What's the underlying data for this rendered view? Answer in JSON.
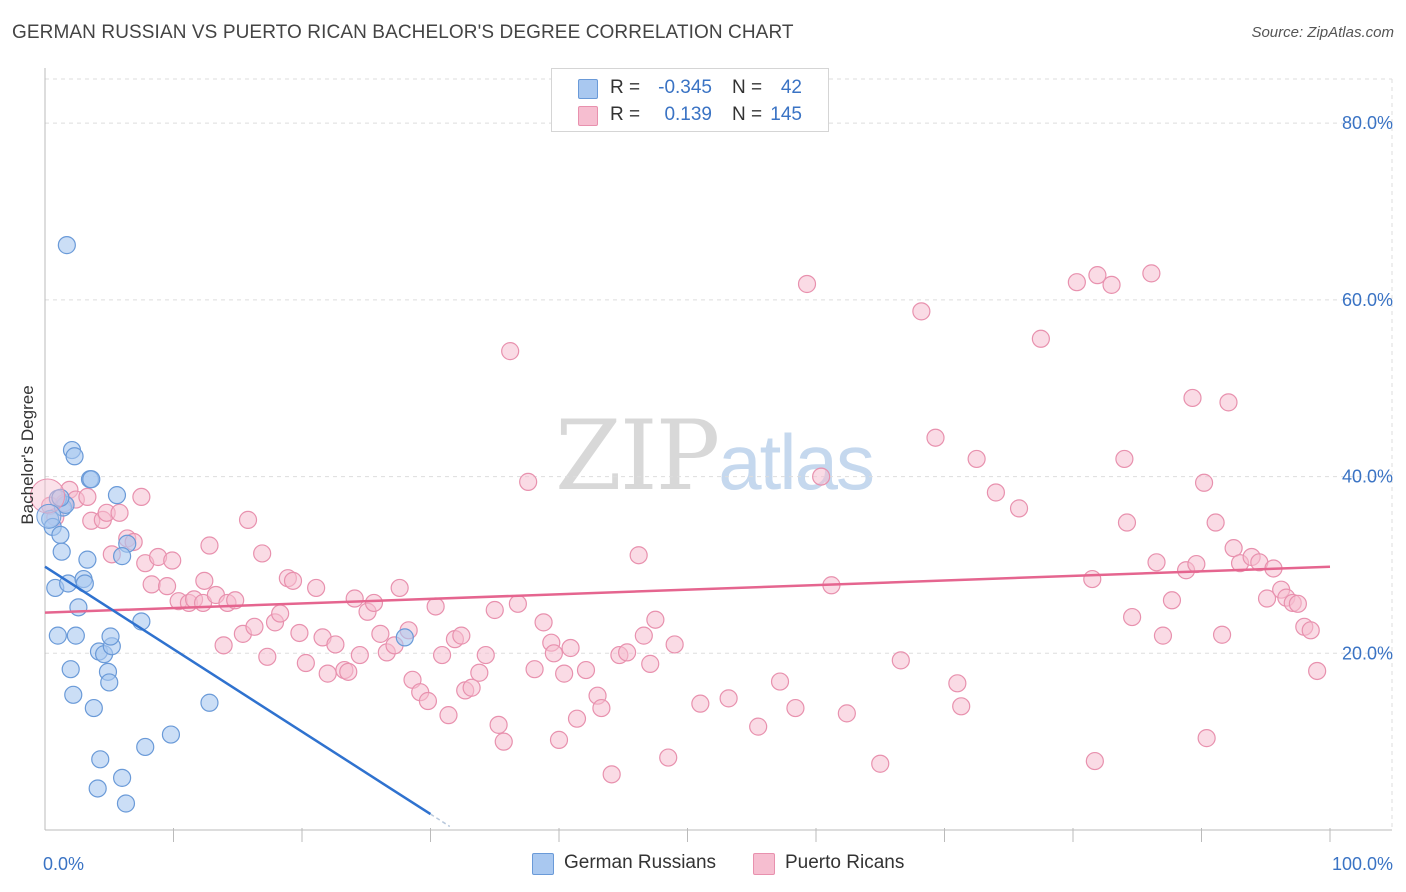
{
  "title": "GERMAN RUSSIAN VS PUERTO RICAN BACHELOR'S DEGREE CORRELATION CHART",
  "source": "Source: ZipAtlas.com",
  "watermark": {
    "zip": "ZIP",
    "atlas": "atlas"
  },
  "colors": {
    "blue_fill": "#a9c8f0",
    "blue_stroke": "#6a9ad8",
    "blue_line": "#2f72cf",
    "pink_fill": "#f6bed0",
    "pink_stroke": "#e891ae",
    "pink_line": "#e5658f",
    "axis_label": "#3a73c4",
    "grid": "#dddddd"
  },
  "legend": {
    "rows": [
      {
        "r_label": "R =",
        "r_value": "-0.345",
        "n_label": "N =",
        "n_value": "42"
      },
      {
        "r_label": "R =",
        "r_value": "0.139",
        "n_label": "N =",
        "n_value": "145"
      }
    ]
  },
  "bottom_legend": {
    "series1": "German Russians",
    "series2": "Puerto Ricans"
  },
  "chart_data": {
    "type": "scatter",
    "title": "GERMAN RUSSIAN VS PUERTO RICAN BACHELOR'S DEGREE CORRELATION CHART",
    "xlabel": "",
    "ylabel": "Bachelor's Degree",
    "xlim": [
      0,
      100
    ],
    "ylim": [
      0,
      85
    ],
    "x_tick_labels": [
      "0.0%",
      "100.0%"
    ],
    "y_ticks": [
      20,
      40,
      60,
      80
    ],
    "y_tick_labels": [
      "20.0%",
      "40.0%",
      "60.0%",
      "80.0%"
    ],
    "grid": true,
    "series": [
      {
        "name": "German Russians",
        "color": "#a9c8f0",
        "trend": {
          "x0": 0,
          "y0": 29.8,
          "x1": 30.0,
          "y1": 1.8,
          "dash_to_x": 31.5
        },
        "points": [
          [
            0.4,
            35.2
          ],
          [
            0.6,
            34.3
          ],
          [
            1.4,
            36.5
          ],
          [
            1.6,
            36.8
          ],
          [
            1.2,
            33.4
          ],
          [
            1.3,
            31.5
          ],
          [
            0.8,
            27.4
          ],
          [
            1.8,
            27.9
          ],
          [
            1.7,
            66.2
          ],
          [
            2.1,
            43.0
          ],
          [
            2.3,
            42.3
          ],
          [
            3.5,
            39.7
          ],
          [
            3.6,
            39.7
          ],
          [
            3.3,
            30.6
          ],
          [
            2.6,
            25.2
          ],
          [
            3.0,
            28.4
          ],
          [
            3.1,
            27.9
          ],
          [
            1.0,
            22.0
          ],
          [
            2.4,
            22.0
          ],
          [
            2.0,
            18.2
          ],
          [
            2.2,
            15.3
          ],
          [
            3.8,
            13.8
          ],
          [
            4.2,
            20.2
          ],
          [
            4.6,
            19.9
          ],
          [
            5.2,
            20.8
          ],
          [
            4.9,
            17.9
          ],
          [
            5.0,
            16.7
          ],
          [
            5.1,
            21.9
          ],
          [
            5.6,
            37.9
          ],
          [
            6.4,
            32.4
          ],
          [
            6.0,
            31.0
          ],
          [
            7.5,
            23.6
          ],
          [
            4.3,
            8.0
          ],
          [
            4.1,
            4.7
          ],
          [
            6.0,
            5.9
          ],
          [
            6.3,
            3.0
          ],
          [
            7.8,
            9.4
          ],
          [
            9.8,
            10.8
          ],
          [
            12.8,
            14.4
          ],
          [
            28.0,
            21.8
          ],
          [
            1.0,
            37.5
          ],
          [
            1.2,
            37.6
          ]
        ]
      },
      {
        "name": "Puerto Ricans",
        "color": "#f6bed0",
        "trend": {
          "x0": 0,
          "y0": 24.6,
          "x1": 100,
          "y1": 29.8
        },
        "points": [
          [
            0.4,
            36.7
          ],
          [
            0.8,
            35.4
          ],
          [
            1.5,
            37.0
          ],
          [
            1.9,
            38.5
          ],
          [
            2.4,
            37.4
          ],
          [
            3.3,
            37.7
          ],
          [
            3.6,
            35.0
          ],
          [
            4.5,
            35.1
          ],
          [
            4.8,
            35.9
          ],
          [
            5.8,
            35.9
          ],
          [
            5.2,
            31.2
          ],
          [
            6.4,
            33.0
          ],
          [
            6.9,
            32.6
          ],
          [
            7.5,
            37.7
          ],
          [
            7.8,
            30.2
          ],
          [
            8.3,
            27.8
          ],
          [
            8.8,
            30.9
          ],
          [
            9.5,
            27.6
          ],
          [
            9.9,
            30.5
          ],
          [
            10.4,
            25.9
          ],
          [
            11.2,
            25.7
          ],
          [
            11.6,
            26.1
          ],
          [
            12.3,
            25.7
          ],
          [
            12.4,
            28.2
          ],
          [
            12.8,
            32.2
          ],
          [
            13.3,
            26.6
          ],
          [
            13.9,
            20.9
          ],
          [
            14.2,
            25.7
          ],
          [
            14.8,
            26.0
          ],
          [
            15.4,
            22.2
          ],
          [
            15.8,
            35.1
          ],
          [
            16.3,
            23.0
          ],
          [
            16.9,
            31.3
          ],
          [
            17.3,
            19.6
          ],
          [
            17.9,
            23.5
          ],
          [
            18.3,
            24.5
          ],
          [
            18.9,
            28.5
          ],
          [
            19.3,
            28.2
          ],
          [
            19.8,
            22.3
          ],
          [
            20.3,
            18.9
          ],
          [
            21.1,
            27.4
          ],
          [
            21.6,
            21.8
          ],
          [
            22.0,
            17.7
          ],
          [
            22.6,
            21.0
          ],
          [
            23.3,
            18.1
          ],
          [
            23.6,
            17.9
          ],
          [
            24.1,
            26.2
          ],
          [
            24.5,
            19.8
          ],
          [
            25.1,
            24.7
          ],
          [
            25.6,
            25.7
          ],
          [
            26.1,
            22.2
          ],
          [
            26.6,
            20.1
          ],
          [
            27.2,
            20.9
          ],
          [
            27.6,
            27.4
          ],
          [
            28.3,
            22.6
          ],
          [
            28.6,
            17.0
          ],
          [
            29.2,
            15.6
          ],
          [
            29.8,
            14.6
          ],
          [
            30.4,
            25.3
          ],
          [
            30.9,
            19.8
          ],
          [
            31.4,
            13.0
          ],
          [
            31.9,
            21.6
          ],
          [
            32.4,
            22.0
          ],
          [
            32.7,
            15.8
          ],
          [
            33.2,
            16.1
          ],
          [
            33.8,
            17.8
          ],
          [
            34.3,
            19.8
          ],
          [
            35.0,
            24.9
          ],
          [
            35.3,
            11.9
          ],
          [
            35.7,
            10.0
          ],
          [
            36.2,
            54.2
          ],
          [
            36.8,
            25.6
          ],
          [
            37.6,
            39.4
          ],
          [
            38.1,
            18.2
          ],
          [
            38.8,
            23.5
          ],
          [
            39.4,
            21.2
          ],
          [
            39.6,
            20.0
          ],
          [
            40.0,
            10.2
          ],
          [
            40.4,
            17.7
          ],
          [
            40.9,
            20.6
          ],
          [
            41.4,
            12.6
          ],
          [
            42.1,
            18.1
          ],
          [
            43.0,
            15.2
          ],
          [
            43.3,
            13.8
          ],
          [
            44.1,
            6.3
          ],
          [
            44.7,
            19.8
          ],
          [
            45.3,
            20.1
          ],
          [
            46.2,
            31.1
          ],
          [
            46.6,
            22.0
          ],
          [
            47.1,
            18.8
          ],
          [
            47.5,
            23.8
          ],
          [
            48.5,
            8.2
          ],
          [
            49.0,
            21.0
          ],
          [
            51.0,
            14.3
          ],
          [
            53.2,
            14.9
          ],
          [
            55.5,
            11.7
          ],
          [
            57.2,
            16.8
          ],
          [
            58.4,
            13.8
          ],
          [
            59.3,
            61.8
          ],
          [
            60.4,
            40.0
          ],
          [
            61.2,
            27.7
          ],
          [
            62.4,
            13.2
          ],
          [
            65.0,
            7.5
          ],
          [
            66.6,
            19.2
          ],
          [
            68.2,
            58.7
          ],
          [
            69.3,
            44.4
          ],
          [
            71.0,
            16.6
          ],
          [
            71.3,
            14.0
          ],
          [
            72.5,
            42.0
          ],
          [
            74.0,
            38.2
          ],
          [
            75.8,
            36.4
          ],
          [
            77.5,
            55.6
          ],
          [
            80.3,
            62.0
          ],
          [
            81.5,
            28.4
          ],
          [
            81.7,
            7.8
          ],
          [
            81.9,
            62.8
          ],
          [
            83.0,
            61.7
          ],
          [
            84.0,
            42.0
          ],
          [
            84.2,
            34.8
          ],
          [
            84.6,
            24.1
          ],
          [
            86.1,
            63.0
          ],
          [
            86.5,
            30.3
          ],
          [
            87.0,
            22.0
          ],
          [
            87.7,
            26.0
          ],
          [
            88.8,
            29.4
          ],
          [
            89.3,
            48.9
          ],
          [
            89.6,
            30.1
          ],
          [
            90.2,
            39.3
          ],
          [
            90.4,
            10.4
          ],
          [
            91.1,
            34.8
          ],
          [
            91.6,
            22.1
          ],
          [
            92.1,
            48.4
          ],
          [
            92.5,
            31.9
          ],
          [
            93.0,
            30.2
          ],
          [
            93.9,
            30.9
          ],
          [
            94.5,
            30.3
          ],
          [
            95.1,
            26.2
          ],
          [
            95.6,
            29.6
          ],
          [
            96.2,
            27.2
          ],
          [
            96.6,
            26.3
          ],
          [
            97.1,
            25.7
          ],
          [
            97.5,
            25.6
          ],
          [
            98.0,
            23.0
          ],
          [
            98.5,
            22.6
          ],
          [
            99.0,
            18.0
          ]
        ]
      }
    ]
  }
}
